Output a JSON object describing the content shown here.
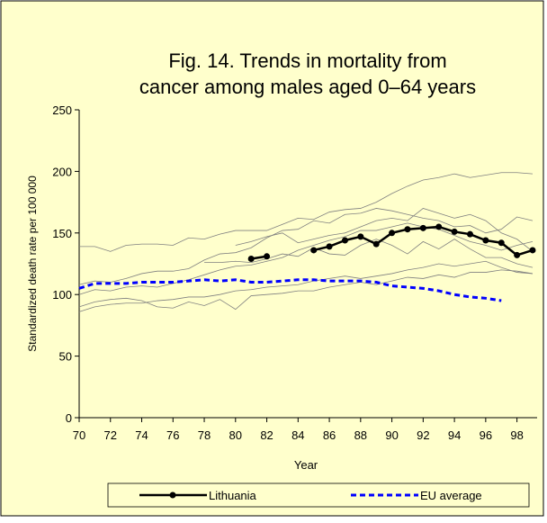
{
  "chart_data": {
    "type": "line",
    "title_lines": [
      "Fig. 14. Trends in mortality from",
      "cancer among males aged 0–64 years"
    ],
    "xlabel": "Year",
    "ylabel": "Standardized death rate per 100 000",
    "x": [
      70,
      71,
      72,
      73,
      74,
      75,
      76,
      77,
      78,
      79,
      80,
      81,
      82,
      83,
      84,
      85,
      86,
      87,
      88,
      89,
      90,
      91,
      92,
      93,
      94,
      95,
      96,
      97,
      98,
      99
    ],
    "xlim": [
      70,
      99
    ],
    "xticks": [
      70,
      72,
      74,
      76,
      78,
      80,
      82,
      84,
      86,
      88,
      90,
      92,
      94,
      96,
      98
    ],
    "ylim": [
      0,
      250
    ],
    "yticks": [
      0,
      50,
      100,
      150,
      200,
      250
    ],
    "series": [
      {
        "color": "#808080",
        "values": [
          139,
          139,
          135,
          140,
          141,
          141,
          140,
          146,
          145,
          149,
          152,
          152,
          152,
          157,
          162,
          161,
          167,
          169,
          170,
          175,
          182,
          188,
          193,
          195,
          198,
          195,
          197,
          199,
          199,
          198
        ]
      },
      {
        "color": "#808080",
        "values": [
          108,
          111,
          110,
          113,
          117,
          119,
          119,
          121,
          128,
          133,
          134,
          138,
          146,
          152,
          153,
          160,
          158,
          165,
          166,
          170,
          168,
          165,
          162,
          160,
          155,
          156,
          150,
          153,
          163,
          160
        ]
      },
      {
        "color": "#808080",
        "values": [
          100,
          104,
          103,
          106,
          107,
          106,
          109,
          112,
          116,
          120,
          123,
          124,
          127,
          130,
          136,
          140,
          144,
          147,
          152,
          152,
          155,
          158,
          155,
          153,
          148,
          143,
          140,
          136,
          140,
          143
        ]
      },
      {
        "color": "#808080",
        "values": [
          86,
          90,
          92,
          93,
          93,
          95,
          96,
          98,
          98,
          100,
          103,
          104,
          106,
          107,
          108,
          111,
          113,
          115,
          113,
          115,
          117,
          120,
          122,
          125,
          123,
          125,
          127,
          122,
          118,
          117
        ]
      },
      {
        "color": "#808080",
        "values": [
          90,
          94,
          96,
          97,
          95,
          90,
          89,
          94,
          91,
          96,
          88,
          99,
          100,
          101,
          103,
          103,
          106,
          108,
          110,
          108,
          111,
          114,
          113,
          116,
          114,
          118,
          118,
          120,
          119,
          117
        ]
      },
      {
        "color": "#808080",
        "values": [
          null,
          null,
          null,
          null,
          null,
          null,
          null,
          null,
          null,
          null,
          140,
          143,
          147,
          150,
          142,
          145,
          148,
          150,
          155,
          160,
          162,
          160,
          170,
          166,
          162,
          165,
          160,
          150,
          145,
          135
        ]
      },
      {
        "color": "#808080",
        "values": [
          null,
          null,
          null,
          null,
          null,
          null,
          null,
          null,
          126,
          126,
          127,
          126,
          129,
          133,
          131,
          138,
          133,
          132,
          140,
          145,
          140,
          133,
          143,
          137,
          145,
          137,
          130,
          130,
          125,
          122
        ]
      },
      {
        "name": "Lithuania",
        "color": "#000000",
        "values": [
          null,
          null,
          null,
          null,
          null,
          null,
          null,
          null,
          null,
          null,
          null,
          129,
          131,
          null,
          null,
          136,
          139,
          144,
          147,
          141,
          150,
          153,
          154,
          155,
          151,
          149,
          144,
          142,
          132,
          136
        ]
      },
      {
        "name": "EU average",
        "color": "#0000ff",
        "values": [
          105,
          109,
          109,
          109,
          110,
          110,
          110,
          111,
          112,
          111,
          112,
          110,
          110,
          111,
          112,
          112,
          111,
          111,
          111,
          110,
          107,
          106,
          105,
          103,
          100,
          98,
          97,
          95,
          null,
          null
        ]
      }
    ]
  }
}
